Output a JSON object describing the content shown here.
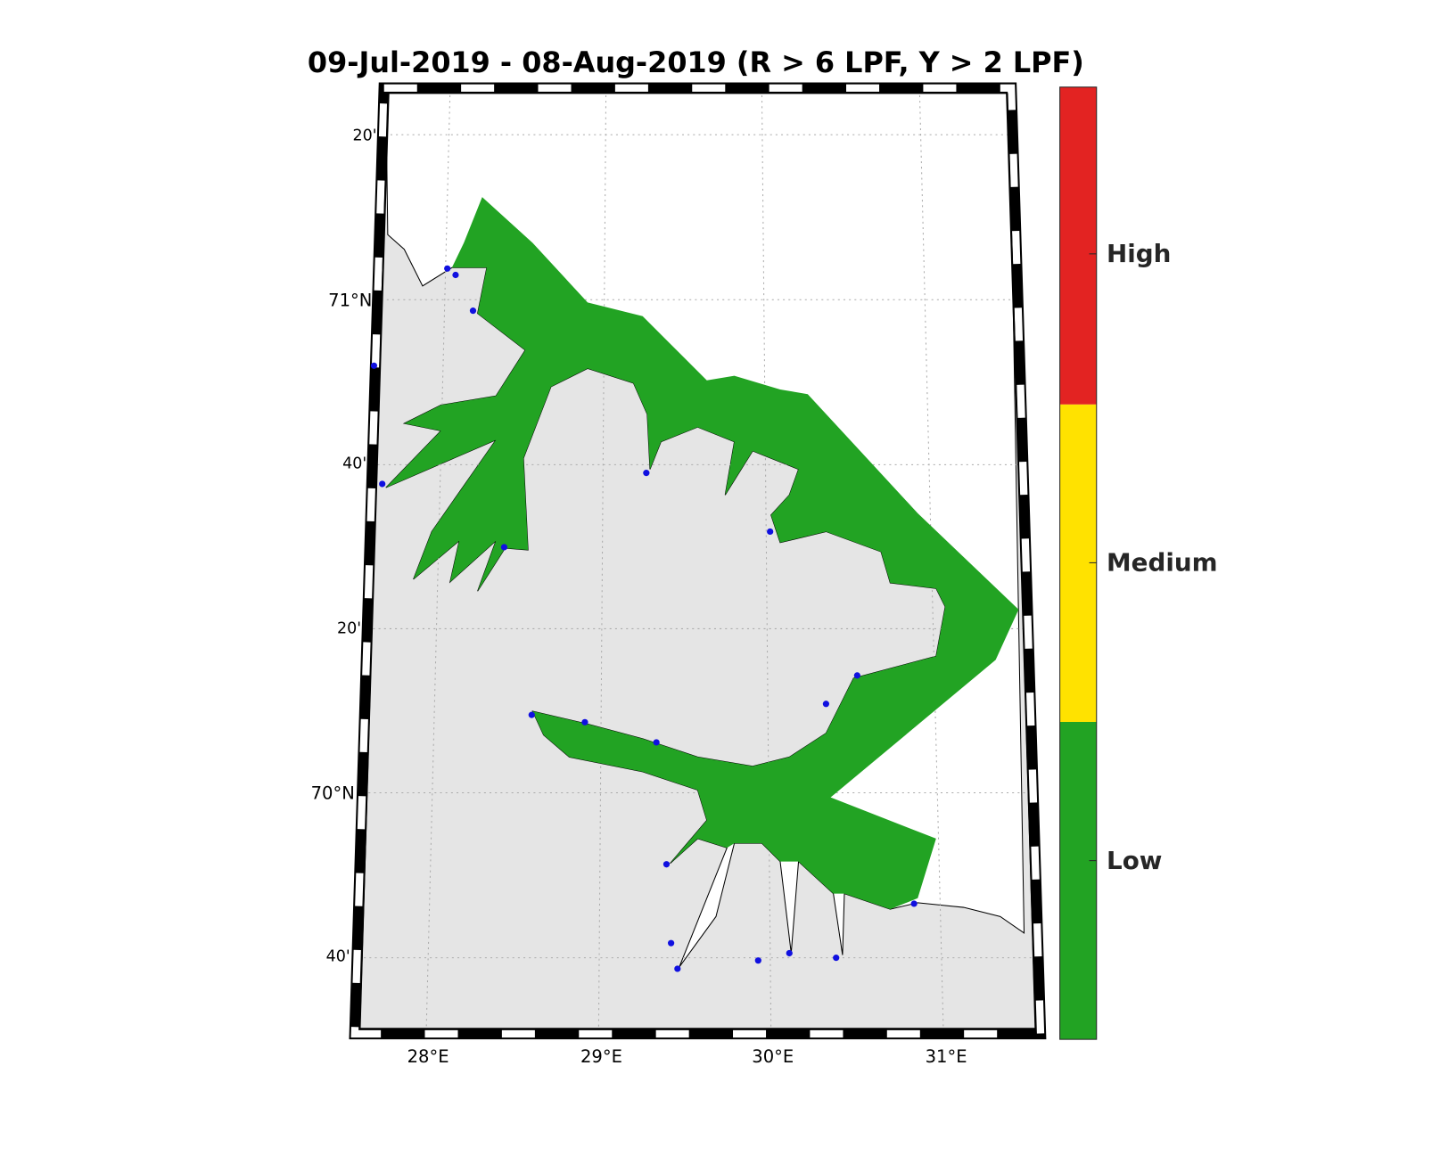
{
  "title": "09-Jul-2019  - 08-Aug-2019  (R > 6 LPF, Y > 2 LPF)",
  "lat_labels": [
    "20'",
    "71°N",
    "40'",
    "20'",
    "70°N",
    "40'"
  ],
  "lon_labels": [
    "28°E",
    "29°E",
    "30°E",
    "31°E"
  ],
  "colorbar": {
    "labels": [
      "High",
      "Medium",
      "Low"
    ],
    "colors": [
      "#e32322",
      "#ffe200",
      "#22a323"
    ]
  }
}
